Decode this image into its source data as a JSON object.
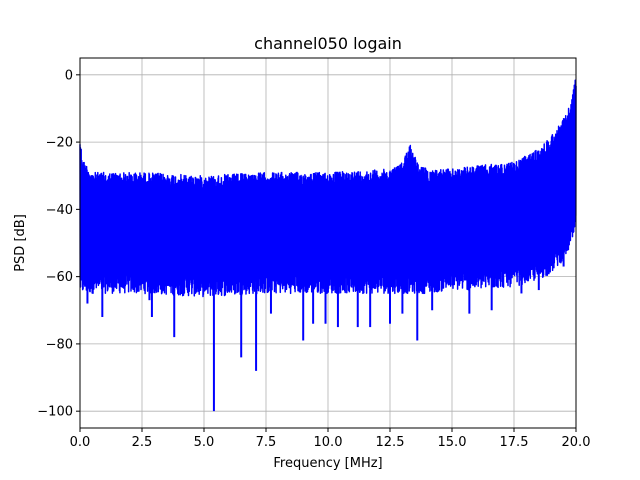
{
  "chart_data": {
    "type": "line",
    "title": "channel050 logain",
    "xlabel": "Frequency [MHz]",
    "ylabel": "PSD [dB]",
    "xlim": [
      0,
      20
    ],
    "ylim": [
      -105,
      5
    ],
    "grid": true,
    "xticks": [
      0,
      2.5,
      5,
      7.5,
      10,
      12.5,
      15,
      17.5,
      20
    ],
    "xtick_labels": [
      "0.0",
      "2.5",
      "5.0",
      "7.5",
      "10.0",
      "12.5",
      "15.0",
      "17.5",
      "20.0"
    ],
    "yticks": [
      0,
      -20,
      -40,
      -60,
      -80,
      -100
    ],
    "ytick_labels": [
      "0",
      "−20",
      "−40",
      "−60",
      "−80",
      "−100"
    ],
    "series": [
      {
        "name": "PSD",
        "color": "#0000ff",
        "envelope_x": [
          0,
          0.1,
          0.5,
          2.5,
          5,
          7.5,
          10,
          12.5,
          13.0,
          13.3,
          13.6,
          14,
          15,
          16,
          17.5,
          18.5,
          19,
          19.5,
          19.8,
          20
        ],
        "upper_db": [
          -18,
          -25,
          -29,
          -29,
          -30,
          -29,
          -29,
          -28,
          -26,
          -20,
          -26,
          -28,
          -28,
          -27,
          -26,
          -22,
          -18,
          -13,
          -8,
          0
        ],
        "lower_db": [
          -62,
          -62,
          -62,
          -62,
          -63,
          -62,
          -62,
          -62,
          -62,
          -62,
          -62,
          -62,
          -61,
          -61,
          -60,
          -58,
          -56,
          -52,
          -48,
          -44
        ],
        "deep_dips": [
          [
            0.3,
            -68
          ],
          [
            0.9,
            -72
          ],
          [
            2.8,
            -67
          ],
          [
            2.9,
            -72
          ],
          [
            3.8,
            -78
          ],
          [
            5.4,
            -100
          ],
          [
            6.5,
            -84
          ],
          [
            7.1,
            -88
          ],
          [
            7.7,
            -71
          ],
          [
            9.0,
            -79
          ],
          [
            9.4,
            -74
          ],
          [
            9.9,
            -74
          ],
          [
            10.4,
            -75
          ],
          [
            11.2,
            -75
          ],
          [
            11.7,
            -75
          ],
          [
            12.5,
            -74
          ],
          [
            13.0,
            -71
          ],
          [
            13.6,
            -79
          ],
          [
            14.2,
            -70
          ],
          [
            15.7,
            -71
          ],
          [
            16.6,
            -70
          ],
          [
            17.8,
            -65
          ],
          [
            18.5,
            -64
          ],
          [
            19.5,
            -57
          ]
        ]
      }
    ]
  }
}
